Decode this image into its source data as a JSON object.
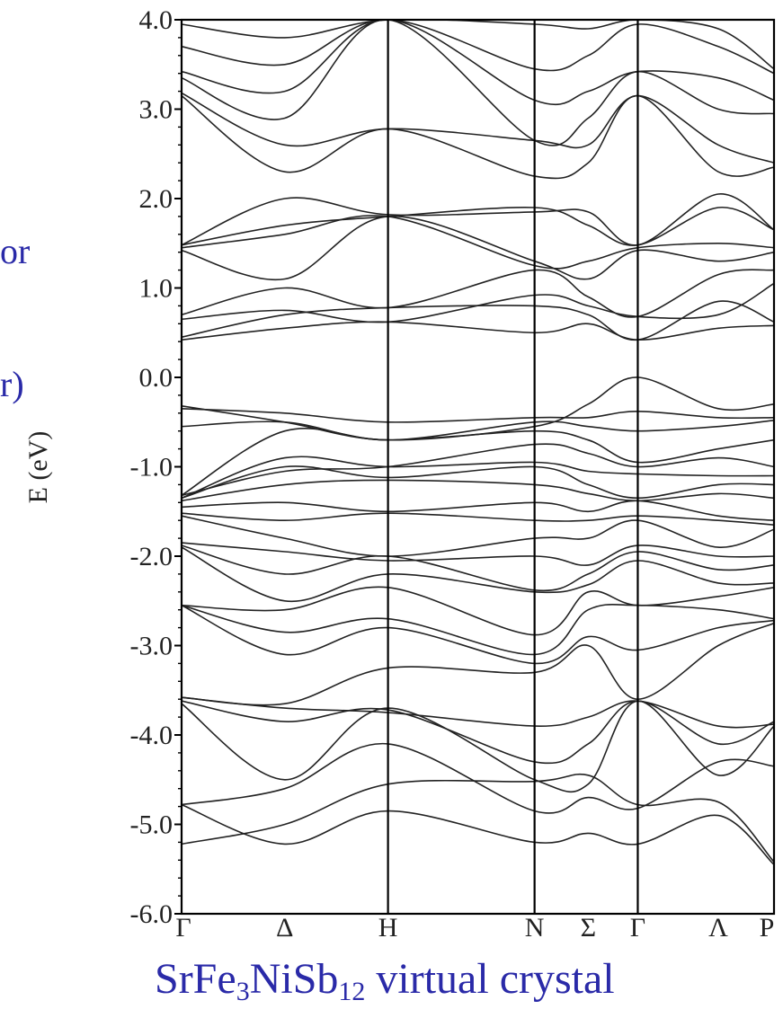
{
  "side_text": [
    "or",
    "r)"
  ],
  "caption": {
    "pre": "SrFe",
    "sub1": "3",
    "mid": "NiSb",
    "sub2": "12",
    "post": " virtual crystal"
  },
  "colors": {
    "caption": "#2a2aa8",
    "lines": "#222222",
    "frame": "#000000"
  },
  "chart_data": {
    "type": "line",
    "title": "",
    "xlabel": "",
    "ylabel": "E (eV)",
    "ylim": [
      -6.0,
      4.0
    ],
    "yticks": [
      4.0,
      3.0,
      2.0,
      1.0,
      0.0,
      -1.0,
      -2.0,
      -3.0,
      -4.0,
      -5.0,
      -6.0
    ],
    "ytick_labels": [
      "4.0",
      "3.0",
      "2.0",
      "1.0",
      "0.0",
      "-1.0",
      "-2.0",
      "-3.0",
      "-4.0",
      "-5.0",
      "-6.0"
    ],
    "k_labels": [
      "Γ",
      "Δ",
      "H",
      "N",
      "Σ",
      "Γ",
      "Λ",
      "P"
    ],
    "k_positions": [
      0.0,
      0.5,
      1.0,
      1.71,
      1.97,
      2.21,
      2.6,
      2.87
    ],
    "high_symmetry_points": [
      0.0,
      1.0,
      1.71,
      2.21,
      2.87
    ],
    "grid": false,
    "bands": [
      [
        -5.22,
        -5.0,
        -4.55,
        -4.52,
        -4.45,
        -4.78,
        -4.75,
        -5.42
      ],
      [
        -4.78,
        -5.22,
        -4.85,
        -5.2,
        -5.1,
        -5.22,
        -4.9,
        -5.45
      ],
      [
        -4.78,
        -4.6,
        -4.1,
        -4.85,
        -4.7,
        -4.82,
        -4.3,
        -4.35
      ],
      [
        -3.65,
        -4.5,
        -3.7,
        -4.5,
        -4.55,
        -3.62,
        -4.45,
        -3.9
      ],
      [
        -3.62,
        -3.85,
        -3.72,
        -4.3,
        -4.1,
        -3.62,
        -4.1,
        -3.85
      ],
      [
        -3.58,
        -3.7,
        -3.75,
        -3.9,
        -3.8,
        -3.62,
        -3.9,
        -3.88
      ],
      [
        -3.58,
        -3.65,
        -3.25,
        -3.3,
        -3.0,
        -3.6,
        -3.0,
        -2.75
      ],
      [
        -2.55,
        -3.1,
        -2.8,
        -3.2,
        -2.9,
        -3.05,
        -2.8,
        -2.72
      ],
      [
        -2.55,
        -2.85,
        -2.7,
        -3.1,
        -2.6,
        -2.55,
        -2.6,
        -2.7
      ],
      [
        -2.55,
        -2.6,
        -2.35,
        -2.88,
        -2.4,
        -2.55,
        -2.45,
        -2.35
      ],
      [
        -1.9,
        -2.5,
        -2.2,
        -2.4,
        -2.32,
        -2.05,
        -2.3,
        -2.3
      ],
      [
        -1.88,
        -2.2,
        -2.0,
        -2.38,
        -2.2,
        -1.95,
        -2.15,
        -2.1
      ],
      [
        -1.85,
        -1.95,
        -2.05,
        -2.0,
        -2.1,
        -1.88,
        -2.0,
        -2.0
      ],
      [
        -1.55,
        -1.8,
        -2.0,
        -1.8,
        -1.8,
        -1.6,
        -1.9,
        -1.7
      ],
      [
        -1.52,
        -1.6,
        -1.52,
        -1.6,
        -1.6,
        -1.55,
        -1.6,
        -1.65
      ],
      [
        -1.45,
        -1.4,
        -1.5,
        -1.4,
        -1.5,
        -1.38,
        -1.55,
        -1.6
      ],
      [
        -1.38,
        -1.2,
        -1.15,
        -1.2,
        -1.3,
        -1.38,
        -1.3,
        -1.35
      ],
      [
        -1.35,
        -1.0,
        -1.12,
        -1.0,
        -1.2,
        -1.35,
        -1.2,
        -1.2
      ],
      [
        -1.35,
        -0.9,
        -1.0,
        -0.95,
        -1.05,
        -1.08,
        -1.1,
        -1.1
      ],
      [
        -1.32,
        -1.05,
        -1.0,
        -0.75,
        -0.85,
        -1.0,
        -0.9,
        -1.0
      ],
      [
        -1.32,
        -0.6,
        -0.7,
        -0.6,
        -0.7,
        -0.95,
        -0.8,
        -0.7
      ],
      [
        -0.55,
        -0.5,
        -0.7,
        -0.5,
        -0.55,
        -0.6,
        -0.55,
        -0.48
      ],
      [
        -0.35,
        -0.4,
        -0.5,
        -0.45,
        -0.45,
        -0.38,
        -0.45,
        -0.45
      ],
      [
        -0.32,
        -0.5,
        -0.7,
        -0.55,
        -0.3,
        0.0,
        -0.35,
        -0.3
      ],
      [
        0.42,
        0.55,
        0.62,
        0.5,
        0.6,
        0.42,
        0.55,
        0.58
      ],
      [
        0.45,
        0.7,
        0.78,
        0.8,
        0.7,
        0.42,
        0.85,
        0.62
      ],
      [
        0.65,
        0.75,
        0.62,
        0.92,
        0.8,
        0.68,
        0.7,
        1.05
      ],
      [
        0.7,
        1.0,
        0.78,
        1.2,
        0.9,
        0.68,
        1.15,
        1.2
      ],
      [
        1.42,
        1.1,
        1.8,
        1.3,
        1.1,
        1.42,
        1.3,
        1.4
      ],
      [
        1.45,
        1.6,
        1.8,
        1.25,
        1.3,
        1.45,
        1.5,
        1.45
      ],
      [
        1.48,
        1.7,
        1.8,
        1.9,
        1.7,
        1.48,
        1.9,
        1.65
      ],
      [
        1.48,
        2.0,
        1.82,
        1.85,
        1.85,
        1.48,
        2.05,
        1.65
      ],
      [
        3.15,
        2.3,
        2.78,
        2.25,
        2.4,
        3.15,
        2.3,
        2.35
      ],
      [
        3.18,
        2.6,
        2.78,
        2.65,
        2.6,
        3.15,
        2.6,
        2.4
      ],
      [
        3.35,
        2.9,
        4.0,
        2.65,
        2.9,
        3.42,
        3.0,
        2.95
      ],
      [
        3.42,
        3.2,
        4.0,
        3.1,
        3.2,
        3.42,
        3.35,
        3.1
      ],
      [
        3.7,
        3.5,
        4.0,
        3.45,
        3.6,
        3.95,
        3.7,
        3.4
      ],
      [
        3.95,
        3.8,
        4.0,
        3.95,
        3.9,
        4.0,
        3.9,
        3.45
      ]
    ]
  }
}
